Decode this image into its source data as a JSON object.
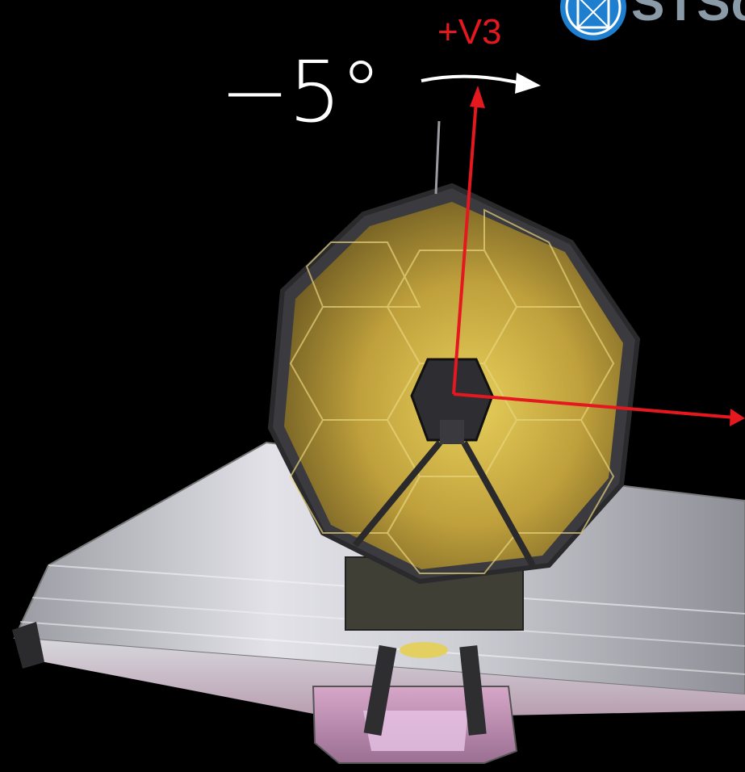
{
  "rotation_angle_label": "−5°",
  "axis_label": "+V3",
  "logo": {
    "text": "STScI",
    "icon": "stsci-logo-icon"
  },
  "colors": {
    "background": "#000000",
    "axis_arrow": "#e5171f",
    "axis_label": "#e5171f",
    "angle_text": "#ffffff",
    "rotation_arrow": "#ffffff",
    "mirror_gold": "#b89a38",
    "sunshield": "#c9c9d0",
    "logo_blue": "#1e7fd0",
    "logo_text": "#8a9aa6"
  }
}
